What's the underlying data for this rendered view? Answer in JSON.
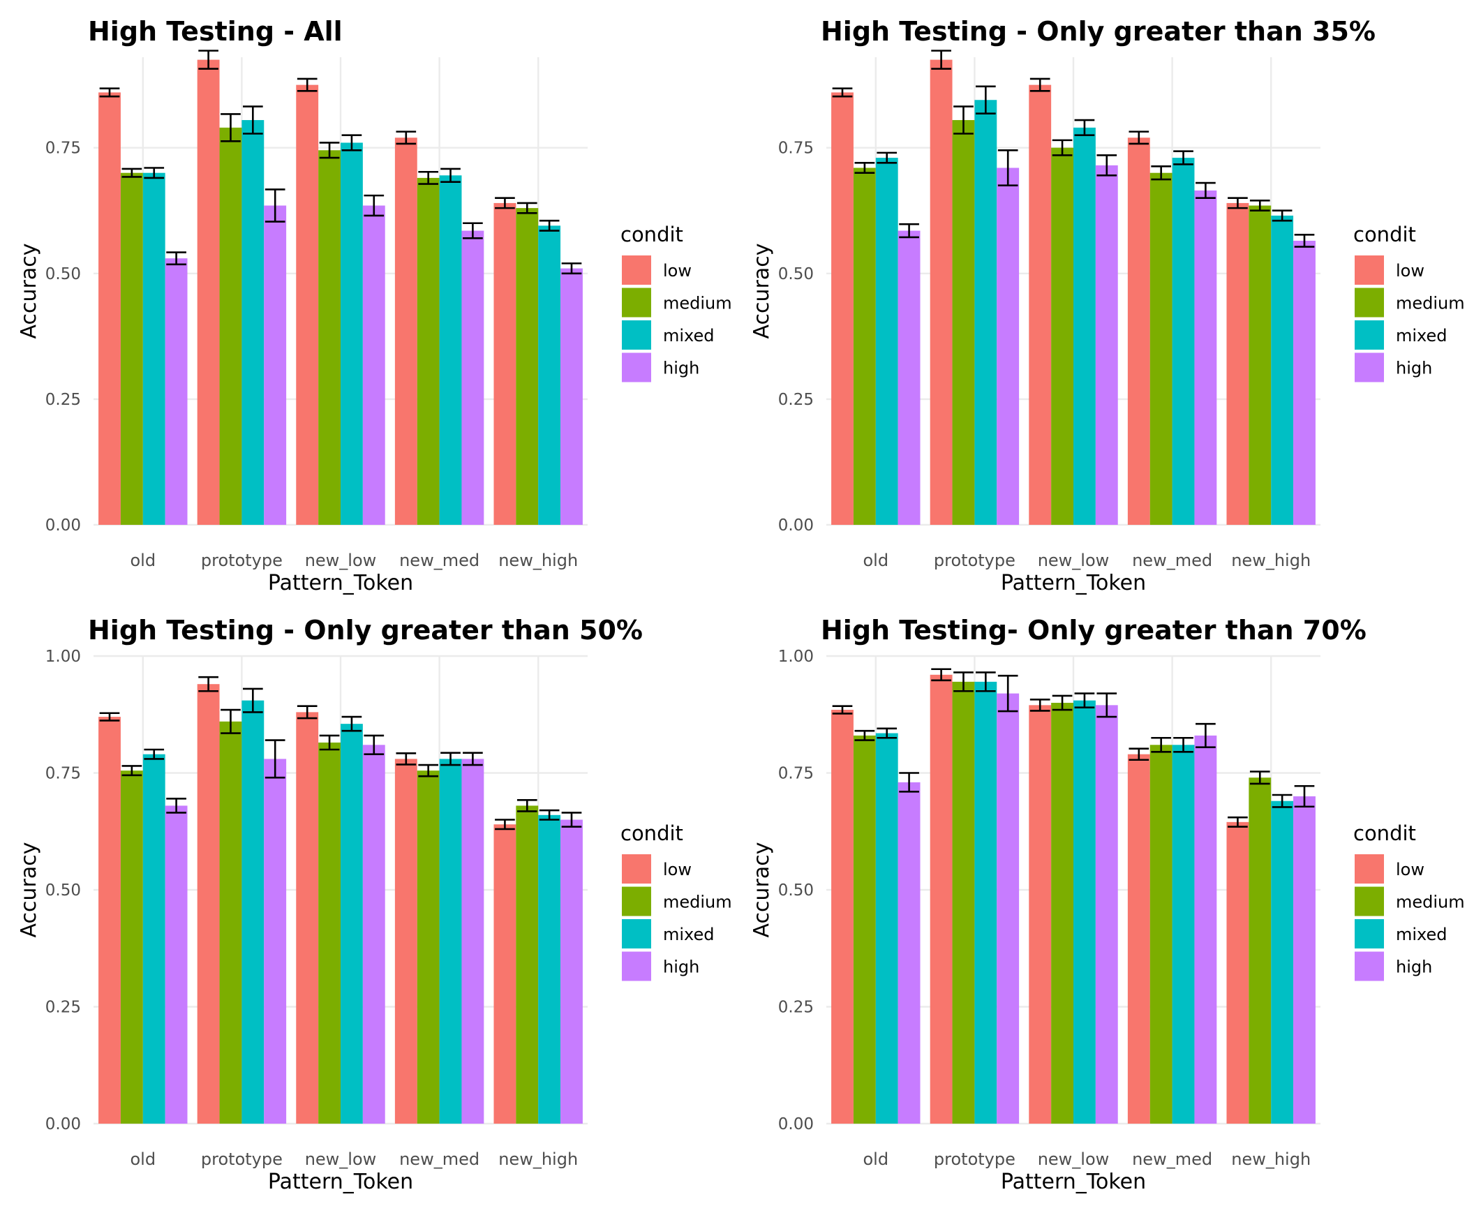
{
  "colors": {
    "low": "#F8766D",
    "medium": "#7CAE00",
    "mixed": "#00BFC4",
    "high": "#C77CFF"
  },
  "chart_data": [
    {
      "type": "bar",
      "title": "High Testing - All",
      "xlabel": "Pattern_Token",
      "ylabel": "Accuracy",
      "categories": [
        "old",
        "prototype",
        "new_low",
        "new_med",
        "new_high"
      ],
      "ylim": [
        0,
        0.93
      ],
      "yticks": [
        0,
        0.25,
        0.5,
        0.75
      ],
      "ytick_labels": [
        "0.00",
        "0.25",
        "0.50",
        "0.75"
      ],
      "grid": true,
      "legend": {
        "title": "condit",
        "position": "right"
      },
      "series": [
        {
          "name": "low",
          "values": [
            0.86,
            0.925,
            0.875,
            0.77,
            0.64
          ],
          "errors": [
            0.008,
            0.018,
            0.012,
            0.012,
            0.01
          ]
        },
        {
          "name": "medium",
          "values": [
            0.7,
            0.79,
            0.745,
            0.69,
            0.63
          ],
          "errors": [
            0.008,
            0.027,
            0.015,
            0.012,
            0.01
          ]
        },
        {
          "name": "mixed",
          "values": [
            0.7,
            0.805,
            0.76,
            0.695,
            0.595
          ],
          "errors": [
            0.01,
            0.027,
            0.015,
            0.013,
            0.01
          ]
        },
        {
          "name": "high",
          "values": [
            0.53,
            0.635,
            0.635,
            0.585,
            0.51
          ],
          "errors": [
            0.012,
            0.032,
            0.02,
            0.015,
            0.01
          ]
        }
      ]
    },
    {
      "type": "bar",
      "title": "High Testing - Only greater than 35%",
      "xlabel": "Pattern_Token",
      "ylabel": "Accuracy",
      "categories": [
        "old",
        "prototype",
        "new_low",
        "new_med",
        "new_high"
      ],
      "ylim": [
        0,
        0.93
      ],
      "yticks": [
        0,
        0.25,
        0.5,
        0.75
      ],
      "ytick_labels": [
        "0.00",
        "0.25",
        "0.50",
        "0.75"
      ],
      "grid": true,
      "legend": {
        "title": "condit",
        "position": "right"
      },
      "series": [
        {
          "name": "low",
          "values": [
            0.86,
            0.925,
            0.875,
            0.77,
            0.64
          ],
          "errors": [
            0.008,
            0.018,
            0.012,
            0.012,
            0.01
          ]
        },
        {
          "name": "medium",
          "values": [
            0.71,
            0.805,
            0.75,
            0.7,
            0.635
          ],
          "errors": [
            0.01,
            0.027,
            0.015,
            0.013,
            0.01
          ]
        },
        {
          "name": "mixed",
          "values": [
            0.73,
            0.845,
            0.79,
            0.73,
            0.615
          ],
          "errors": [
            0.01,
            0.027,
            0.015,
            0.013,
            0.01
          ]
        },
        {
          "name": "high",
          "values": [
            0.585,
            0.71,
            0.715,
            0.665,
            0.565
          ],
          "errors": [
            0.013,
            0.035,
            0.02,
            0.015,
            0.012
          ]
        }
      ]
    },
    {
      "type": "bar",
      "title": "High Testing - Only greater than 50%",
      "xlabel": "Pattern_Token",
      "ylabel": "Accuracy",
      "categories": [
        "old",
        "prototype",
        "new_low",
        "new_med",
        "new_high"
      ],
      "ylim": [
        0,
        1.0
      ],
      "yticks": [
        0,
        0.25,
        0.5,
        0.75,
        1.0
      ],
      "ytick_labels": [
        "0.00",
        "0.25",
        "0.50",
        "0.75",
        "1.00"
      ],
      "grid": true,
      "legend": {
        "title": "condit",
        "position": "right"
      },
      "series": [
        {
          "name": "low",
          "values": [
            0.87,
            0.94,
            0.88,
            0.78,
            0.64
          ],
          "errors": [
            0.008,
            0.015,
            0.013,
            0.012,
            0.01
          ]
        },
        {
          "name": "medium",
          "values": [
            0.755,
            0.86,
            0.815,
            0.755,
            0.68
          ],
          "errors": [
            0.01,
            0.025,
            0.015,
            0.012,
            0.012
          ]
        },
        {
          "name": "mixed",
          "values": [
            0.79,
            0.905,
            0.855,
            0.78,
            0.66
          ],
          "errors": [
            0.01,
            0.025,
            0.015,
            0.013,
            0.01
          ]
        },
        {
          "name": "high",
          "values": [
            0.68,
            0.78,
            0.81,
            0.78,
            0.65
          ],
          "errors": [
            0.015,
            0.04,
            0.02,
            0.013,
            0.015
          ]
        }
      ]
    },
    {
      "type": "bar",
      "title": "High Testing- Only greater than 70%",
      "xlabel": "Pattern_Token",
      "ylabel": "Accuracy",
      "categories": [
        "old",
        "prototype",
        "new_low",
        "new_med",
        "new_high"
      ],
      "ylim": [
        0,
        1.0
      ],
      "yticks": [
        0,
        0.25,
        0.5,
        0.75,
        1.0
      ],
      "ytick_labels": [
        "0.00",
        "0.25",
        "0.50",
        "0.75",
        "1.00"
      ],
      "grid": true,
      "legend": {
        "title": "condit",
        "position": "right"
      },
      "series": [
        {
          "name": "low",
          "values": [
            0.885,
            0.96,
            0.895,
            0.79,
            0.645
          ],
          "errors": [
            0.008,
            0.012,
            0.012,
            0.012,
            0.01
          ]
        },
        {
          "name": "medium",
          "values": [
            0.83,
            0.945,
            0.9,
            0.81,
            0.74
          ],
          "errors": [
            0.01,
            0.02,
            0.015,
            0.015,
            0.013
          ]
        },
        {
          "name": "mixed",
          "values": [
            0.835,
            0.945,
            0.905,
            0.81,
            0.69
          ],
          "errors": [
            0.01,
            0.02,
            0.015,
            0.015,
            0.013
          ]
        },
        {
          "name": "high",
          "values": [
            0.73,
            0.92,
            0.895,
            0.83,
            0.7
          ],
          "errors": [
            0.02,
            0.038,
            0.025,
            0.025,
            0.022
          ]
        }
      ]
    }
  ]
}
